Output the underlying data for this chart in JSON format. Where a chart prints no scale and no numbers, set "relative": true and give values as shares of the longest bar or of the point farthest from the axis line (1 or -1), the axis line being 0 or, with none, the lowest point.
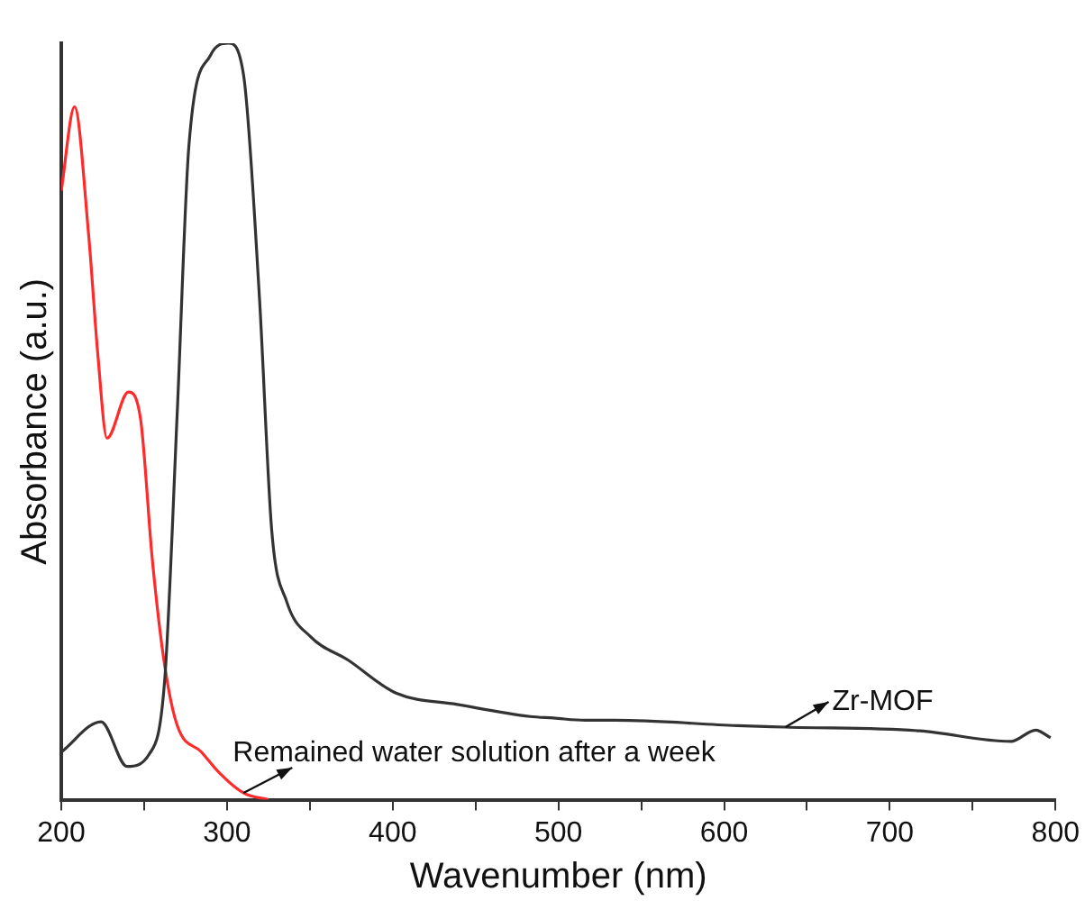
{
  "chart_data": {
    "type": "line",
    "xlabel": "Wavenumber (nm)",
    "ylabel": "Absorbance (a.u.)",
    "relative": true,
    "xlim": [
      200,
      800
    ],
    "xticks": [
      200,
      {
        "value": 250,
        "label": null
      },
      300,
      {
        "value": 350,
        "label": null
      },
      400,
      {
        "value": 450,
        "label": null
      },
      500,
      {
        "value": 550,
        "label": null
      },
      600,
      {
        "value": 650,
        "label": null
      },
      700,
      {
        "value": 750,
        "label": null
      },
      800
    ],
    "grid": false,
    "legend": false,
    "marker": "none",
    "line_style": "solid",
    "annotations": [
      {
        "text": "Zr-MOF",
        "x": 637,
        "y": 0.096
      },
      {
        "text": "Remained water solution after a week",
        "x": 310,
        "y": 0.009
      }
    ],
    "series": [
      {
        "color": "#333333",
        "x": [
          200,
          224,
          239.7,
          253,
          262.5,
          270,
          277,
          290,
          301,
          310,
          319.5,
          327,
          336,
          350.7,
          372.8,
          402,
          439,
          483,
          497,
          516,
          534.5,
          608,
          637,
          718,
          773,
          788,
          797
        ],
        "values": [
          0.063,
          0.103,
          0.044,
          0.06,
          0.161,
          0.513,
          0.864,
          0.984,
          1.0,
          0.958,
          0.667,
          0.356,
          0.262,
          0.215,
          0.185,
          0.141,
          0.126,
          0.11,
          0.108,
          0.105,
          0.105,
          0.098,
          0.096,
          0.091,
          0.077,
          0.092,
          0.082
        ]
      },
      {
        "color": "#ff2a2a",
        "x": [
          200,
          208,
          216.5,
          222,
          227.6,
          240.5,
          247.8,
          255,
          262.5,
          270,
          284.6,
          295.6,
          310,
          325
        ],
        "values": [
          0.805,
          0.916,
          0.747,
          0.59,
          0.478,
          0.539,
          0.504,
          0.316,
          0.176,
          0.098,
          0.063,
          0.035,
          0.009,
          0
        ]
      }
    ]
  }
}
